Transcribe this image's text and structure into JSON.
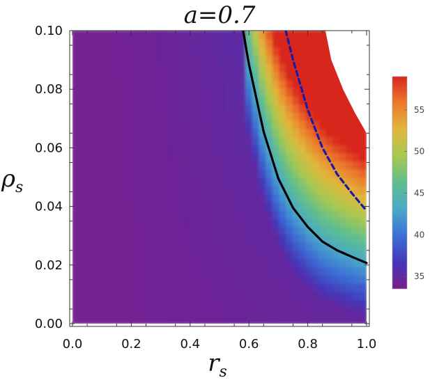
{
  "chart_data": {
    "type": "heatmap",
    "title": "a=0.7",
    "xlabel_main": "r",
    "xlabel_sub": "s",
    "ylabel_main": "ρ",
    "ylabel_sub": "s",
    "xlim": [
      0,
      1
    ],
    "ylim": [
      0,
      0.1
    ],
    "xticks": [
      {
        "value": 0.0,
        "label": "0.0"
      },
      {
        "value": 0.2,
        "label": "0.2"
      },
      {
        "value": 0.4,
        "label": "0.4"
      },
      {
        "value": 0.6,
        "label": "0.6"
      },
      {
        "value": 0.8,
        "label": "0.8"
      },
      {
        "value": 1.0,
        "label": "1.0"
      }
    ],
    "yticks": [
      {
        "value": 0.0,
        "label": "0.00"
      },
      {
        "value": 0.02,
        "label": "0.02"
      },
      {
        "value": 0.04,
        "label": "0.04"
      },
      {
        "value": 0.06,
        "label": "0.06"
      },
      {
        "value": 0.08,
        "label": "0.08"
      },
      {
        "value": 0.1,
        "label": "0.10"
      }
    ],
    "colorbar": {
      "range": [
        33.5,
        59
      ],
      "ticks": [
        {
          "value": 35,
          "label": "35"
        },
        {
          "value": 40,
          "label": "40"
        },
        {
          "value": 45,
          "label": "45"
        },
        {
          "value": 50,
          "label": "50"
        },
        {
          "value": 55,
          "label": "55"
        }
      ],
      "colors": [
        "#7b1e8c",
        "#4535b8",
        "#3b6fd6",
        "#4aa8c8",
        "#5fbf8c",
        "#a8c850",
        "#e0b83c",
        "#ec7a2c",
        "#d8261e"
      ]
    },
    "contours": [
      {
        "style": "solid",
        "color": "#000000",
        "points": [
          [
            0.58,
            0.1
          ],
          [
            0.6,
            0.0885
          ],
          [
            0.65,
            0.0655
          ],
          [
            0.7,
            0.0495
          ],
          [
            0.75,
            0.0395
          ],
          [
            0.8,
            0.033
          ],
          [
            0.85,
            0.028
          ],
          [
            0.9,
            0.025
          ],
          [
            0.95,
            0.0228
          ],
          [
            1.0,
            0.0207
          ]
        ]
      },
      {
        "style": "dashed",
        "color": "#1a1aa6",
        "points": [
          [
            0.725,
            0.1
          ],
          [
            0.75,
            0.09
          ],
          [
            0.8,
            0.073
          ],
          [
            0.85,
            0.06
          ],
          [
            0.9,
            0.051
          ],
          [
            0.95,
            0.0445
          ],
          [
            1.0,
            0.0385
          ]
        ]
      }
    ],
    "upper_boundary": [
      [
        0.86,
        0.1
      ],
      [
        0.88,
        0.09
      ],
      [
        0.92,
        0.08
      ],
      [
        0.96,
        0.072
      ],
      [
        1.0,
        0.065
      ]
    ]
  }
}
